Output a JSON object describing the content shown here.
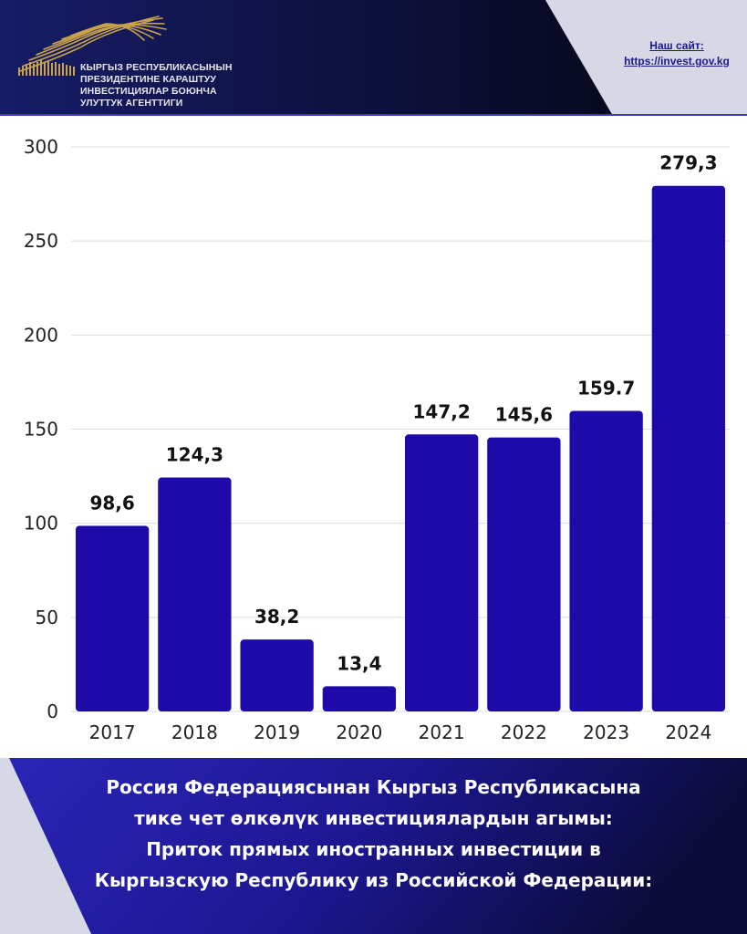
{
  "header": {
    "org_lines": [
      "КЫРГЫЗ РЕСПУБЛИКАСЫНЫН",
      "ПРЕЗИДЕНТИНЕ КАРАШТУУ",
      "ИНВЕСТИЦИЯЛАР БОЮНЧА",
      "УЛУТТУК АГЕНТТИГИ"
    ],
    "site_label": "Наш сайт:",
    "site_url": "https://invest.gov.kg"
  },
  "colors": {
    "bar": "#1d0aa8",
    "header_dark": "#08081c",
    "header_navy": "#161d66",
    "footer_blue": "#2219a6",
    "gray_panel": "#d6d8e6",
    "gold": "#c9a24a"
  },
  "chart_data": {
    "type": "bar",
    "categories": [
      "2017",
      "2018",
      "2019",
      "2020",
      "2021",
      "2022",
      "2023",
      "2024"
    ],
    "values": [
      98.6,
      124.3,
      38.2,
      13.4,
      147.2,
      145.6,
      159.7,
      279.3
    ],
    "value_labels": [
      "98,6",
      "124,3",
      "38,2",
      "13,4",
      "147,2",
      "145,6",
      "159.7",
      "279,3"
    ],
    "y_ticks": [
      "0",
      "50",
      "100",
      "150",
      "200",
      "250",
      "300"
    ],
    "ylim": [
      0,
      300
    ],
    "grid": true,
    "legend": false
  },
  "footer": {
    "lines": [
      "Россия Федерациясынан Кыргыз Республикасына",
      "тике чет өлкөлүк инвестициялардын агымы:",
      "Приток прямых иностранных инвестиции в",
      "Кыргызскую Республику из Российской Федерации:"
    ]
  }
}
